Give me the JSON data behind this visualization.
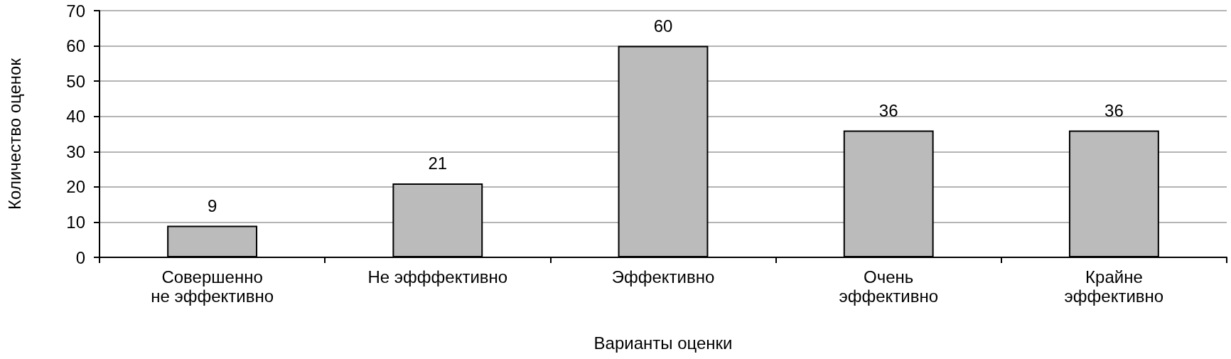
{
  "chart_data": {
    "type": "bar",
    "xlabel": "Варианты оценки",
    "ylabel": "Количество оценок",
    "categories": [
      "Совершенно не эффективно",
      "Не эфффективно",
      "Эффективно",
      "Очень эффективно",
      "Крайне эффективно"
    ],
    "values": [
      9,
      21,
      60,
      36,
      36
    ],
    "color": "#bbbbbb",
    "ylim": [
      0,
      70
    ],
    "yticks": [
      0,
      10,
      20,
      30,
      40,
      50,
      60,
      70
    ],
    "grid": "y",
    "data_labels": true
  }
}
